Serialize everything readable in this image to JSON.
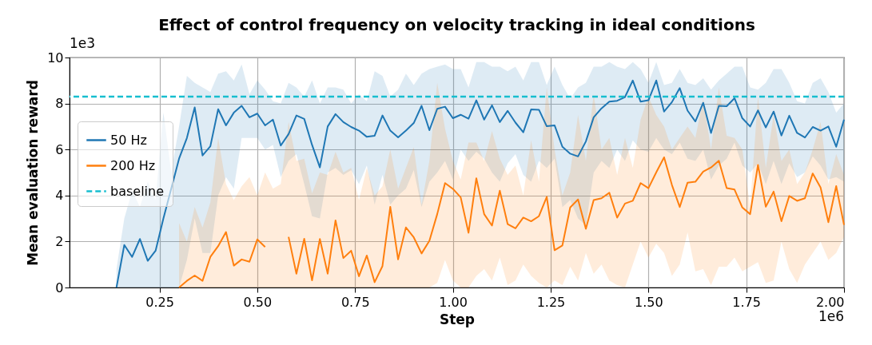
{
  "chart_data": {
    "type": "line",
    "title": "Effect of control frequency on velocity tracking in ideal conditions",
    "xlabel": "Step",
    "ylabel": "Mean evaluation reward",
    "annotations": [
      "1e3",
      "1e6"
    ],
    "xlim": [
      0.02,
      2.0
    ],
    "xticks": [
      {
        "value": 0.25,
        "label": "0.25"
      },
      {
        "value": 0.5,
        "label": "0.50"
      },
      {
        "value": 0.75,
        "label": "0.75"
      },
      {
        "value": 1.0,
        "label": "1.00"
      },
      {
        "value": 1.25,
        "label": "1.25"
      },
      {
        "value": 1.5,
        "label": "1.50"
      },
      {
        "value": 1.75,
        "label": "1.75"
      },
      {
        "value": 2.0,
        "label": "2.00"
      }
    ],
    "ylim": [
      0,
      10
    ],
    "yticks": [
      0,
      2,
      4,
      6,
      8,
      10
    ],
    "grid": true,
    "legend": "left",
    "line_style": "solid",
    "marker": "none",
    "ref_lines": [
      {
        "axis": "y",
        "value": 8.3,
        "label": "baseline",
        "color": "#17becf",
        "line_style": "dashed"
      }
    ],
    "series": [
      {
        "name": "50 Hz",
        "color": "#1f77b4",
        "x": [
          0.14,
          0.16,
          0.18,
          0.2,
          0.22,
          0.24,
          0.26,
          0.28,
          0.3,
          0.32,
          0.34,
          0.36,
          0.38,
          0.4,
          0.42,
          0.44,
          0.46,
          0.48,
          0.5,
          0.52,
          0.54,
          0.56,
          0.58,
          0.6,
          0.62,
          0.64,
          0.66,
          0.68,
          0.7,
          0.72,
          0.74,
          0.76,
          0.78,
          0.8,
          0.82,
          0.84,
          0.86,
          0.88,
          0.9,
          0.92,
          0.94,
          0.96,
          0.98,
          1.0,
          1.02,
          1.04,
          1.06,
          1.08,
          1.1,
          1.12,
          1.14,
          1.16,
          1.18,
          1.2,
          1.22,
          1.24,
          1.26,
          1.28,
          1.3,
          1.32,
          1.34,
          1.36,
          1.38,
          1.4,
          1.42,
          1.44,
          1.46,
          1.48,
          1.5,
          1.52,
          1.54,
          1.56,
          1.58,
          1.6,
          1.62,
          1.64,
          1.66,
          1.68,
          1.7,
          1.72,
          1.74,
          1.76,
          1.78,
          1.8,
          1.82,
          1.84,
          1.86,
          1.88,
          1.9,
          1.92,
          1.94,
          1.96,
          1.98,
          2.0
        ],
        "values": [
          0,
          1.85,
          1.33,
          2.11,
          1.16,
          1.6,
          3.0,
          4.3,
          5.6,
          6.5,
          7.83,
          5.74,
          6.14,
          7.75,
          7.05,
          7.6,
          7.9,
          7.4,
          7.56,
          7.05,
          7.3,
          6.17,
          6.67,
          7.48,
          7.33,
          6.2,
          5.22,
          7.0,
          7.54,
          7.19,
          6.98,
          6.82,
          6.55,
          6.6,
          7.48,
          6.82,
          6.53,
          6.82,
          7.15,
          7.9,
          6.84,
          7.77,
          7.86,
          7.36,
          7.51,
          7.34,
          8.14,
          7.3,
          7.92,
          7.19,
          7.68,
          7.17,
          6.75,
          7.74,
          7.73,
          7.01,
          7.05,
          6.12,
          5.82,
          5.7,
          6.35,
          7.4,
          7.79,
          8.08,
          8.12,
          8.28,
          9.0,
          8.08,
          8.14,
          9.0,
          7.65,
          8.06,
          8.67,
          7.69,
          7.22,
          8.03,
          6.72,
          7.9,
          7.88,
          8.23,
          7.36,
          7.0,
          7.7,
          6.96,
          7.65,
          6.61,
          7.47,
          6.72,
          6.52,
          6.98,
          6.82,
          7.0,
          6.12,
          7.3
        ],
        "lower": [
          0,
          0,
          0,
          0,
          0,
          0,
          0,
          0,
          0,
          1.2,
          3.0,
          1.5,
          1.5,
          4.0,
          4.8,
          4.3,
          6.5,
          6.5,
          6.5,
          6.0,
          6.2,
          4.8,
          5.5,
          5.8,
          4.5,
          3.1,
          3.0,
          5.0,
          5.2,
          4.9,
          5.1,
          4.5,
          5.3,
          3.6,
          4.9,
          3.6,
          4.0,
          4.3,
          5.1,
          3.5,
          4.6,
          5.0,
          5.5,
          4.7,
          6.0,
          5.5,
          5.9,
          5.6,
          5.0,
          4.6,
          5.4,
          5.8,
          4.9,
          4.6,
          5.5,
          5.2,
          5.6,
          3.5,
          3.8,
          3.0,
          2.7,
          5.0,
          5.5,
          5.2,
          6.0,
          5.5,
          6.4,
          6.0,
          5.9,
          6.5,
          6.0,
          5.8,
          6.3,
          5.6,
          5.5,
          6.0,
          4.7,
          5.3,
          5.6,
          6.3,
          5.3,
          5.0,
          5.4,
          4.5,
          5.5,
          4.5,
          5.4,
          4.8,
          5.0,
          5.7,
          5.3,
          4.7,
          4.8,
          4.6
        ],
        "upper": [
          0.8,
          3.0,
          4.2,
          3.5,
          4.6,
          3.8,
          7.6,
          5.0,
          7.0,
          9.2,
          8.9,
          8.7,
          8.5,
          9.3,
          9.4,
          9.0,
          9.7,
          8.4,
          9.0,
          8.6,
          8.1,
          8.0,
          8.9,
          8.7,
          8.3,
          9.0,
          8.0,
          8.7,
          8.7,
          8.6,
          8.0,
          8.4,
          8.1,
          9.4,
          9.2,
          8.3,
          8.6,
          9.3,
          8.8,
          9.3,
          9.5,
          9.6,
          9.7,
          9.5,
          9.5,
          8.7,
          9.8,
          9.8,
          9.6,
          9.6,
          9.4,
          9.6,
          9.0,
          9.8,
          9.8,
          8.8,
          9.6,
          8.8,
          8.2,
          8.7,
          8.9,
          9.6,
          9.6,
          9.8,
          9.6,
          9.5,
          9.8,
          9.5,
          8.9,
          9.8,
          8.8,
          8.9,
          9.5,
          8.9,
          8.8,
          9.1,
          8.6,
          9.0,
          9.3,
          9.6,
          9.6,
          8.7,
          8.6,
          8.9,
          9.5,
          9.5,
          8.9,
          8.1,
          8.0,
          8.9,
          9.1,
          8.5,
          7.6,
          8.0
        ]
      },
      {
        "name": "200 Hz",
        "color": "#ff7f0e",
        "x": [
          0.3,
          0.32,
          0.34,
          0.36,
          0.38,
          0.4,
          0.42,
          0.44,
          0.46,
          0.48,
          0.5,
          0.52,
          0.54,
          0.56,
          0.58,
          0.6,
          0.62,
          0.64,
          0.66,
          0.68,
          0.7,
          0.72,
          0.74,
          0.76,
          0.78,
          0.8,
          0.82,
          0.84,
          0.86,
          0.88,
          0.9,
          0.92,
          0.94,
          0.96,
          0.98,
          1.0,
          1.02,
          1.04,
          1.06,
          1.08,
          1.1,
          1.12,
          1.14,
          1.16,
          1.18,
          1.2,
          1.22,
          1.24,
          1.26,
          1.28,
          1.3,
          1.32,
          1.34,
          1.36,
          1.38,
          1.4,
          1.42,
          1.44,
          1.46,
          1.48,
          1.5,
          1.52,
          1.54,
          1.56,
          1.58,
          1.6,
          1.62,
          1.64,
          1.66,
          1.68,
          1.7,
          1.72,
          1.74,
          1.76,
          1.78,
          1.8,
          1.82,
          1.84,
          1.86,
          1.88,
          1.9,
          1.92,
          1.94,
          1.96,
          1.98,
          2.0
        ],
        "values": [
          0,
          0.29,
          0.52,
          0.29,
          1.33,
          1.8,
          2.41,
          0.95,
          1.22,
          1.12,
          2.09,
          1.76,
          null,
          null,
          2.2,
          0.6,
          2.12,
          0.31,
          2.11,
          0.6,
          2.92,
          1.28,
          1.6,
          0.49,
          1.39,
          0.23,
          0.93,
          3.51,
          1.22,
          2.61,
          2.18,
          1.48,
          2.03,
          3.19,
          4.54,
          4.29,
          3.92,
          2.38,
          4.75,
          3.19,
          2.69,
          4.21,
          2.76,
          2.57,
          3.04,
          2.88,
          3.1,
          3.94,
          1.62,
          1.83,
          3.48,
          3.83,
          2.55,
          3.8,
          3.88,
          4.12,
          3.04,
          3.65,
          3.77,
          4.54,
          4.32,
          5.01,
          5.66,
          4.46,
          3.5,
          4.56,
          4.6,
          5.04,
          5.22,
          5.51,
          4.32,
          4.26,
          3.48,
          3.19,
          5.33,
          3.51,
          4.17,
          2.88,
          3.98,
          3.77,
          3.88,
          4.96,
          4.35,
          2.84,
          4.41,
          2.72
        ],
        "lower": [
          0,
          0,
          0,
          0,
          0,
          0,
          0,
          0,
          0,
          0,
          0,
          0,
          0,
          0,
          0,
          0,
          0,
          0,
          0,
          0,
          0,
          0,
          0,
          0,
          0,
          0,
          0,
          0,
          0,
          0,
          0,
          0,
          0,
          0.2,
          1.2,
          0.3,
          0,
          0,
          0.5,
          0.8,
          0.3,
          1.3,
          0.1,
          0.3,
          1.0,
          0.5,
          0.2,
          0,
          0.3,
          0.1,
          0.9,
          0.3,
          1.5,
          0.6,
          1.0,
          0.3,
          0.1,
          0,
          1.0,
          2.0,
          1.3,
          1.9,
          1.5,
          0.5,
          1.0,
          2.4,
          0.7,
          0.8,
          0.1,
          0.9,
          0.9,
          1.3,
          0.7,
          0.9,
          1.1,
          0.2,
          0.3,
          2.0,
          0.8,
          0.2,
          1.0,
          1.5,
          2.0,
          1.2,
          1.5,
          2.2
        ],
        "upper": [
          2.8,
          2.0,
          3.5,
          2.6,
          3.7,
          6.5,
          4.5,
          3.8,
          4.4,
          4.8,
          4.0,
          5.0,
          4.3,
          4.5,
          7.2,
          5.5,
          5.6,
          4.1,
          5.0,
          4.9,
          5.9,
          5.0,
          5.2,
          3.8,
          5.2,
          4.0,
          4.4,
          6.0,
          4.3,
          5.2,
          6.1,
          3.6,
          5.5,
          8.9,
          6.9,
          5.5,
          4.7,
          6.3,
          6.3,
          5.5,
          6.8,
          5.6,
          4.9,
          5.3,
          4.0,
          6.4,
          4.6,
          8.7,
          6.0,
          4.0,
          5.0,
          7.5,
          5.5,
          8.4,
          6.0,
          6.5,
          4.9,
          6.5,
          5.2,
          7.3,
          8.3,
          7.5,
          7.0,
          6.0,
          6.5,
          7.0,
          6.5,
          8.2,
          6.0,
          8.7,
          6.6,
          6.5,
          6.0,
          3.5,
          8.3,
          5.2,
          7.5,
          5.5,
          6.0,
          4.5,
          5.0,
          6.0,
          7.2,
          4.5,
          5.8,
          4.9
        ]
      }
    ]
  }
}
